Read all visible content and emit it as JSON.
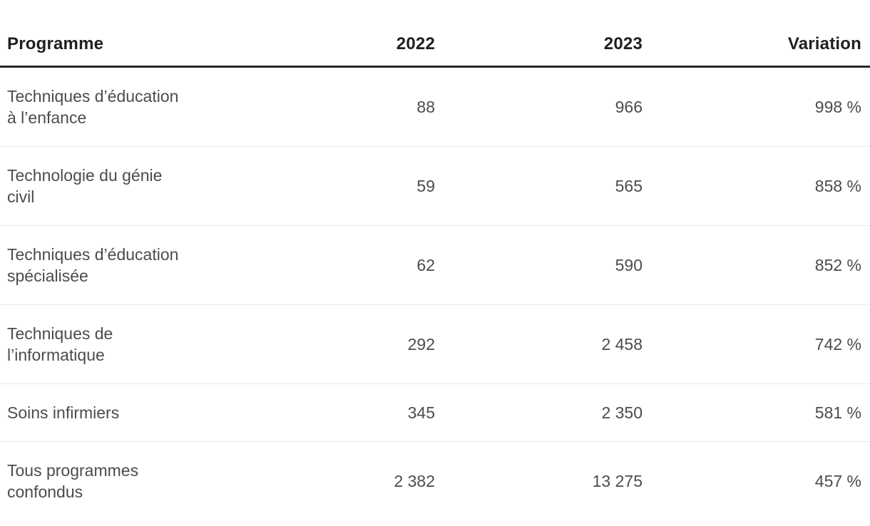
{
  "chart_data": {
    "type": "table",
    "columns": [
      "Programme",
      "2022",
      "2023",
      "Variation"
    ],
    "rows": [
      {
        "programme": "Techniques d’éducation\nà l’enfance",
        "v2022": "88",
        "v2023": "966",
        "variation": "998 %"
      },
      {
        "programme": "Technologie du génie\ncivil",
        "v2022": "59",
        "v2023": "565",
        "variation": "858 %"
      },
      {
        "programme": "Techniques d’éducation\nspécialisée",
        "v2022": "62",
        "v2023": "590",
        "variation": "852 %"
      },
      {
        "programme": "Techniques de\nl’informatique",
        "v2022": "292",
        "v2023": "2 458",
        "variation": "742 %"
      },
      {
        "programme": "Soins infirmiers",
        "v2022": "345",
        "v2023": "2 350",
        "variation": "581 %"
      },
      {
        "programme": "Tous programmes\nconfondus",
        "v2022": "2 382",
        "v2023": "13 275",
        "variation": "457 %"
      }
    ]
  },
  "colors": {
    "header_text": "#1f1f1f",
    "body_text": "#4c4c4c",
    "header_rule": "#262626",
    "row_separator": "#e9e9e9",
    "background": "#ffffff"
  }
}
